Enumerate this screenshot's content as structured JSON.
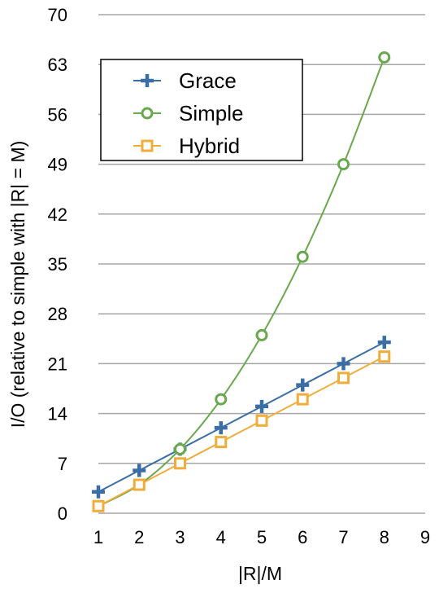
{
  "chart_data": {
    "type": "line",
    "title": "",
    "xlabel": "|R|/M",
    "ylabel": "I/O (relative to simple with |R| = M)",
    "xlim": [
      1,
      9
    ],
    "ylim": [
      0,
      70
    ],
    "xticks": [
      "1",
      "2",
      "3",
      "4",
      "5",
      "6",
      "7",
      "8",
      "9"
    ],
    "yticks": [
      "0",
      "7",
      "14",
      "21",
      "28",
      "35",
      "42",
      "49",
      "56",
      "63",
      "70"
    ],
    "grid": "horizontal",
    "legend_position": "top-left",
    "series": [
      {
        "name": "Grace",
        "marker": "plus",
        "color": "#3a6ea5",
        "smooth": false,
        "x": [
          1,
          2,
          3,
          4,
          5,
          6,
          7,
          8
        ],
        "values": [
          3,
          6,
          9,
          12,
          15,
          18,
          21,
          24
        ]
      },
      {
        "name": "Simple",
        "marker": "circle",
        "color": "#6aa84f",
        "smooth": true,
        "x": [
          1,
          2,
          3,
          4,
          5,
          6,
          7,
          8
        ],
        "values": [
          1,
          4,
          9,
          16,
          25,
          36,
          49,
          64
        ]
      },
      {
        "name": "Hybrid",
        "marker": "square",
        "color": "#f0ad3c",
        "smooth": false,
        "x": [
          1,
          2,
          3,
          4,
          5,
          6,
          7,
          8
        ],
        "values": [
          1,
          4,
          7,
          10,
          13,
          16,
          19,
          22
        ]
      }
    ]
  }
}
